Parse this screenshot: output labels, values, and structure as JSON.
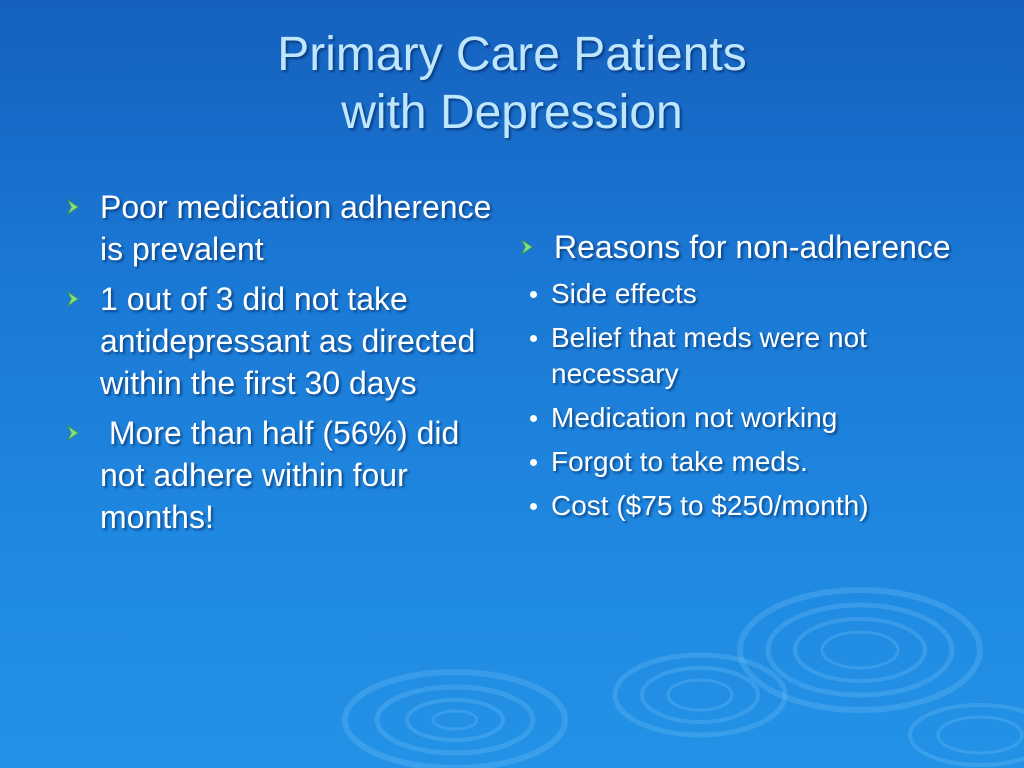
{
  "slide": {
    "title_line1": "Primary Care Patients",
    "title_line2": "with Depression",
    "left_bullets": [
      "Poor medication adherence is prevalent",
      "1 out of 3 did not take antidepressant as directed within the first 30 days",
      " More than half (56%) did not adhere within four months!"
    ],
    "right_bullet": "Reasons for non-adherence",
    "right_sub_bullets": [
      "Side effects",
      "Belief that meds were not necessary",
      "Medication not working",
      "Forgot to take meds.",
      "Cost ($75 to $250/month)"
    ]
  },
  "colors": {
    "background_top": "#1560bd",
    "background_bottom": "#2392e6",
    "title": "#bfe6ff",
    "text": "#ffffff",
    "arrow_bullet": "#7ee08a"
  },
  "icons": {
    "bullet_marker": "arrow-bullet-icon",
    "sub_bullet_marker": "dot-bullet-icon"
  }
}
